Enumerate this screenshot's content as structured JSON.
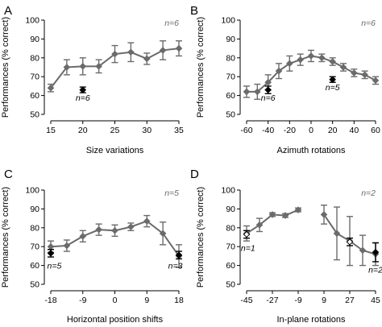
{
  "chart_data": [
    {
      "type": "line",
      "panel": "A",
      "xlabel": "Size variations",
      "ylabel": "Performances (% correct)",
      "xlim": [
        15,
        35
      ],
      "ylim": [
        50,
        100
      ],
      "xticks": [
        "15",
        "20",
        "25",
        "30",
        "35"
      ],
      "yticks": [
        "50",
        "60",
        "70",
        "80",
        "90",
        "100"
      ],
      "corner_label": "n=6",
      "series": [
        {
          "x": [
            15,
            17.5,
            20,
            22.5,
            25,
            27.5,
            30,
            32.5,
            35
          ],
          "y": [
            64,
            75,
            75.5,
            75.5,
            82,
            83,
            79.5,
            84,
            85
          ],
          "err": [
            2,
            4,
            4.5,
            3.5,
            4.5,
            5,
            3,
            5,
            4
          ],
          "style": "gray-line"
        },
        {
          "x": [
            20
          ],
          "y": [
            63
          ],
          "err": [
            1.5
          ],
          "style": "black-point"
        }
      ],
      "annotations": [
        {
          "text": "n=6",
          "x": 20,
          "y": 59
        }
      ]
    },
    {
      "type": "line",
      "panel": "B",
      "xlabel": "Azimuth rotations",
      "ylabel": "Performances (% correct)",
      "xlim": [
        -60,
        60
      ],
      "ylim": [
        50,
        100
      ],
      "xticks": [
        "-60",
        "-40",
        "-20",
        "0",
        "20",
        "40",
        "60"
      ],
      "yticks": [
        "50",
        "60",
        "70",
        "80",
        "90",
        "100"
      ],
      "corner_label": "n=6",
      "series": [
        {
          "x": [
            -60,
            -50,
            -40,
            -30,
            -20,
            -10,
            0,
            10,
            20,
            30,
            40,
            50,
            60
          ],
          "y": [
            62,
            62,
            67,
            73,
            77,
            79,
            81,
            80,
            78,
            75,
            72,
            71,
            68
          ],
          "err": [
            3,
            4,
            4,
            4,
            4,
            3,
            3,
            2,
            2,
            2,
            2,
            2,
            2
          ],
          "style": "gray-line"
        },
        {
          "x": [
            -40
          ],
          "y": [
            63
          ],
          "err": [
            2
          ],
          "style": "black-point"
        },
        {
          "x": [
            20
          ],
          "y": [
            68.5
          ],
          "err": [
            1.5
          ],
          "style": "black-point"
        }
      ],
      "annotations": [
        {
          "text": "n=6",
          "x": -40,
          "y": 59
        },
        {
          "text": "n=5",
          "x": 20,
          "y": 64.5
        }
      ]
    },
    {
      "type": "line",
      "panel": "C",
      "xlabel": "Horizontal position shifts",
      "ylabel": "Performances (% correct)",
      "xlim": [
        -18,
        18
      ],
      "ylim": [
        50,
        100
      ],
      "xticks": [
        "-18",
        "-9",
        "0",
        "9",
        "18"
      ],
      "yticks": [
        "50",
        "60",
        "70",
        "80",
        "90",
        "100"
      ],
      "corner_label": "n=5",
      "series": [
        {
          "x": [
            -18,
            -13.5,
            -9,
            -4.5,
            0,
            4.5,
            9,
            13.5,
            18
          ],
          "y": [
            70,
            70.5,
            75.5,
            79,
            78.5,
            80.5,
            83.5,
            77,
            65
          ],
          "err": [
            3,
            3,
            3,
            3,
            3,
            2,
            3,
            6,
            6
          ],
          "style": "gray-line"
        },
        {
          "x": [
            -18
          ],
          "y": [
            66.5
          ],
          "err": [
            2
          ],
          "style": "black-point"
        },
        {
          "x": [
            18
          ],
          "y": [
            65.5
          ],
          "err": [
            2
          ],
          "style": "black-point"
        }
      ],
      "annotations": [
        {
          "text": "n=5",
          "x": -17,
          "y": 60
        },
        {
          "text": "n=3",
          "x": 17,
          "y": 60
        }
      ]
    },
    {
      "type": "line",
      "panel": "D",
      "xlabel": "In-plane rotations",
      "ylabel": "Performances (% correct)",
      "xlim": [
        -45,
        45
      ],
      "ylim": [
        50,
        100
      ],
      "xticks": [
        "-45",
        "-27",
        "-9",
        "9",
        "27",
        "45"
      ],
      "yticks": [
        "50",
        "60",
        "70",
        "80",
        "90",
        "100"
      ],
      "corner_label": "n=2",
      "series": [
        {
          "x": [
            -45,
            -36,
            -27,
            -18,
            -9
          ],
          "y": [
            77,
            81.5,
            87,
            86.5,
            89.5
          ],
          "err": [
            4,
            3.5,
            1,
            1,
            1
          ],
          "style": "gray-line"
        },
        {
          "x": [
            9,
            18,
            27,
            36,
            45
          ],
          "y": [
            87,
            77,
            73,
            68,
            66
          ],
          "err": [
            5,
            14,
            13,
            8,
            6
          ],
          "style": "gray-line"
        },
        {
          "x": [
            -45
          ],
          "y": [
            76.5
          ],
          "err": [
            2
          ],
          "style": "white-point"
        },
        {
          "x": [
            27
          ],
          "y": [
            72.5
          ],
          "err": [
            2
          ],
          "style": "white-point"
        },
        {
          "x": [
            45
          ],
          "y": [
            67
          ],
          "err": [
            5
          ],
          "style": "black-point"
        }
      ],
      "annotations": [
        {
          "text": "n=1",
          "x": -44,
          "y": 69.5
        },
        {
          "text": "n=2",
          "x": 45,
          "y": 58
        }
      ]
    }
  ]
}
